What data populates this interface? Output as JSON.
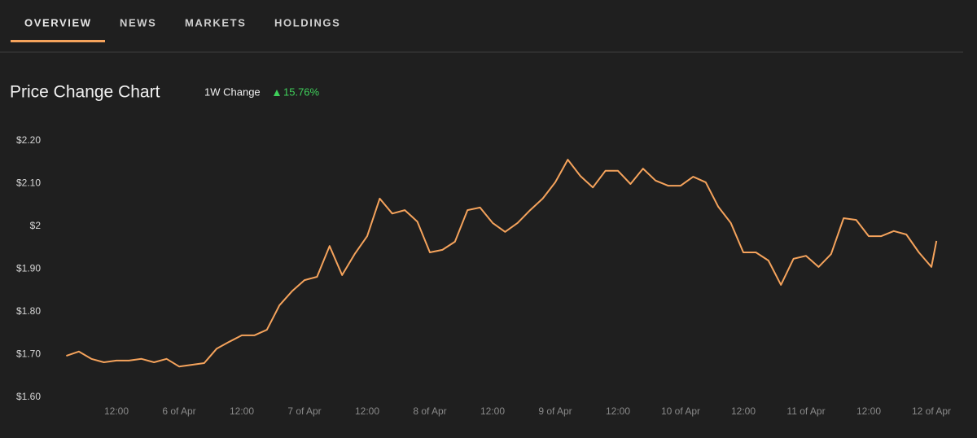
{
  "tabs": [
    "OVERVIEW",
    "NEWS",
    "MARKETS",
    "HOLDINGS"
  ],
  "summary": {
    "label": "1W Change",
    "value": "15.76%"
  },
  "chart_data": {
    "type": "line",
    "title": "Price Change Chart",
    "color": "#f5a35c",
    "x": [
      5.1,
      5.2,
      5.3,
      5.4,
      5.5,
      5.6,
      5.7,
      5.8,
      5.9,
      6.0,
      6.1,
      6.2,
      6.3,
      6.4,
      6.5,
      6.6,
      6.7,
      6.8,
      6.9,
      7.0,
      7.1,
      7.2,
      7.3,
      7.4,
      7.5,
      7.6,
      7.7,
      7.8,
      7.9,
      8.0,
      8.1,
      8.2,
      8.3,
      8.4,
      8.5,
      8.6,
      8.7,
      8.8,
      8.9,
      9.0,
      9.1,
      9.2,
      9.3,
      9.4,
      9.5,
      9.6,
      9.7,
      9.8,
      9.9,
      10.0,
      10.1,
      10.2,
      10.3,
      10.4,
      10.5,
      10.6,
      10.7,
      10.8,
      10.9,
      11.0,
      11.1,
      11.2,
      11.3,
      11.4,
      11.5,
      11.6,
      11.7,
      11.8,
      11.9,
      12.0,
      12.04
    ],
    "values": [
      1.697,
      1.707,
      1.69,
      1.682,
      1.686,
      1.686,
      1.69,
      1.682,
      1.69,
      1.672,
      1.676,
      1.68,
      1.714,
      1.73,
      1.745,
      1.745,
      1.758,
      1.815,
      1.848,
      1.874,
      1.882,
      1.954,
      1.886,
      1.935,
      1.977,
      2.065,
      2.03,
      2.038,
      2.011,
      1.939,
      1.945,
      1.964,
      2.038,
      2.044,
      2.008,
      1.987,
      2.008,
      2.038,
      2.065,
      2.103,
      2.156,
      2.118,
      2.091,
      2.13,
      2.13,
      2.099,
      2.135,
      2.107,
      2.095,
      2.095,
      2.116,
      2.103,
      2.046,
      2.008,
      1.939,
      1.939,
      1.92,
      1.863,
      1.924,
      1.931,
      1.905,
      1.935,
      2.019,
      2.015,
      1.977,
      1.977,
      1.989,
      1.981,
      1.939,
      1.905,
      1.966
    ],
    "xlim": [
      5,
      12.2
    ],
    "xticks": [
      {
        "value": 5.5,
        "label": "12:00"
      },
      {
        "value": 6,
        "label": "6 of Apr"
      },
      {
        "value": 6.5,
        "label": "12:00"
      },
      {
        "value": 7,
        "label": "7 of Apr"
      },
      {
        "value": 7.5,
        "label": "12:00"
      },
      {
        "value": 8,
        "label": "8 of Apr"
      },
      {
        "value": 8.5,
        "label": "12:00"
      },
      {
        "value": 9,
        "label": "9 of Apr"
      },
      {
        "value": 9.5,
        "label": "12:00"
      },
      {
        "value": 10,
        "label": "10 of Apr"
      },
      {
        "value": 10.5,
        "label": "12:00"
      },
      {
        "value": 11,
        "label": "11 of Apr"
      },
      {
        "value": 11.5,
        "label": "12:00"
      },
      {
        "value": 12,
        "label": "12 of Apr"
      }
    ],
    "ylim": [
      1.6,
      2.2
    ],
    "yticks": [
      {
        "value": 2.2,
        "label": "$2.20"
      },
      {
        "value": 2.1,
        "label": "$2.10"
      },
      {
        "value": 2.0,
        "label": "$2"
      },
      {
        "value": 1.9,
        "label": "$1.90"
      },
      {
        "value": 1.8,
        "label": "$1.80"
      },
      {
        "value": 1.7,
        "label": "$1.70"
      },
      {
        "value": 1.6,
        "label": "$1.60"
      }
    ],
    "grid": false
  }
}
